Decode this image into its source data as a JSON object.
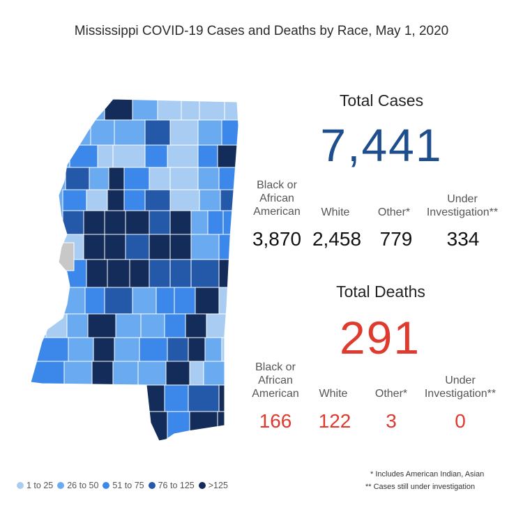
{
  "title": "Mississippi COVID-19 Cases and Deaths by Race, May 1, 2020",
  "cases": {
    "heading": "Total Cases",
    "total": "7,441",
    "categories": [
      {
        "label": "Black or African American",
        "value": "3,870"
      },
      {
        "label": "White",
        "value": "2,458"
      },
      {
        "label": "Other*",
        "value": "779"
      },
      {
        "label": "Under Investigation**",
        "value": "334"
      }
    ]
  },
  "deaths": {
    "heading": "Total Deaths",
    "total": "291",
    "categories": [
      {
        "label": "Black or African American",
        "value": "166"
      },
      {
        "label": "White",
        "value": "122"
      },
      {
        "label": "Other*",
        "value": "3"
      },
      {
        "label": "Under Investigation**",
        "value": "0"
      }
    ]
  },
  "footnotes": {
    "other": "* Includes American Indian, Asian",
    "investigation": "** Cases still under investigation"
  },
  "legend": [
    {
      "label": "1 to 25",
      "color": "#a9cdf2"
    },
    {
      "label": "26 to 50",
      "color": "#6aaaf0"
    },
    {
      "label": "51 to 75",
      "color": "#3b88ea"
    },
    {
      "label": "76 to 125",
      "color": "#2458a8"
    },
    {
      "label": ">125",
      "color": "#132c5a"
    }
  ],
  "colors": {
    "cases_total": "#1f4e8c",
    "deaths": "#e03a2e",
    "no_data": "#c8c8c8"
  }
}
